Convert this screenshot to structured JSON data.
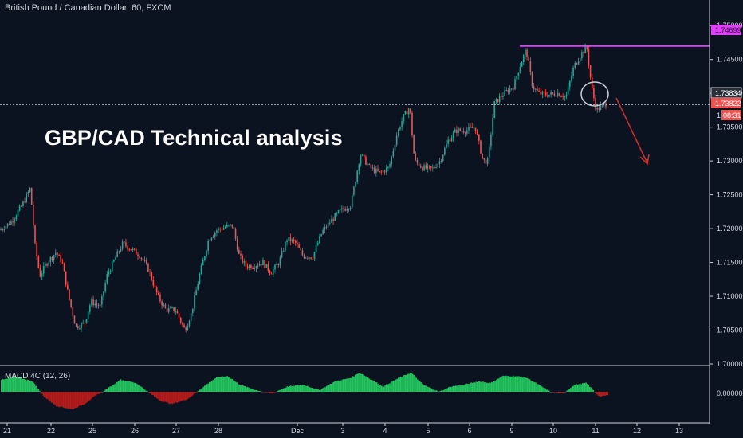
{
  "header": {
    "symbol_title": "British Pound / Canadian Dollar, 60, FXCM"
  },
  "annotation": {
    "headline": "GBP/CAD Technical analysis"
  },
  "macd": {
    "label": "MACD 4C (12, 26)",
    "zero_label": "0.00000"
  },
  "colors": {
    "background": "#0b1220",
    "bull": "#26a69a",
    "bear": "#ef5350",
    "resistance": "#e040fb",
    "arrow": "#d32f2f",
    "macd_pos": "#22c55e",
    "macd_neg": "#b71c1c"
  },
  "price_badges": {
    "resistance": "1.74699",
    "current": "1.73834",
    "bid": "1.73822",
    "timer": "08:31",
    "timer_prefix": "1"
  },
  "chart_data": {
    "type": "candlestick",
    "title": "British Pound / Canadian Dollar, 60, FXCM",
    "ylim": [
      1.7,
      1.7525
    ],
    "y_ticks": [
      "1.75000",
      "1.74500",
      "1.74000",
      "1.73500",
      "1.73000",
      "1.72500",
      "1.72000",
      "1.71500",
      "1.71000",
      "1.70500",
      "1.70000"
    ],
    "x_ticks": [
      "21",
      "22",
      "25",
      "26",
      "27",
      "28",
      "Dec",
      "3",
      "4",
      "5",
      "6",
      "9",
      "10",
      "11",
      "12",
      "13"
    ],
    "resistance_level": 1.74699,
    "current_level": 1.73834,
    "price_path": [
      [
        0,
        1.7198
      ],
      [
        14,
        1.721
      ],
      [
        28,
        1.7235
      ],
      [
        38,
        1.726
      ],
      [
        44,
        1.7175
      ],
      [
        50,
        1.713
      ],
      [
        58,
        1.7148
      ],
      [
        70,
        1.7165
      ],
      [
        78,
        1.715
      ],
      [
        86,
        1.71
      ],
      [
        95,
        1.7055
      ],
      [
        106,
        1.706
      ],
      [
        114,
        1.7092
      ],
      [
        126,
        1.7085
      ],
      [
        134,
        1.713
      ],
      [
        144,
        1.7155
      ],
      [
        154,
        1.7178
      ],
      [
        164,
        1.717
      ],
      [
        176,
        1.716
      ],
      [
        186,
        1.714
      ],
      [
        198,
        1.71
      ],
      [
        208,
        1.708
      ],
      [
        220,
        1.708
      ],
      [
        232,
        1.705
      ],
      [
        240,
        1.7075
      ],
      [
        250,
        1.713
      ],
      [
        262,
        1.7185
      ],
      [
        272,
        1.7198
      ],
      [
        282,
        1.7202
      ],
      [
        292,
        1.7205
      ],
      [
        300,
        1.716
      ],
      [
        308,
        1.7145
      ],
      [
        318,
        1.7145
      ],
      [
        330,
        1.715
      ],
      [
        340,
        1.7135
      ],
      [
        350,
        1.715
      ],
      [
        360,
        1.7185
      ],
      [
        370,
        1.718
      ],
      [
        380,
        1.716
      ],
      [
        392,
        1.7158
      ],
      [
        404,
        1.7195
      ],
      [
        414,
        1.721
      ],
      [
        426,
        1.7225
      ],
      [
        440,
        1.7235
      ],
      [
        452,
        1.731
      ],
      [
        464,
        1.729
      ],
      [
        476,
        1.7282
      ],
      [
        488,
        1.729
      ],
      [
        498,
        1.734
      ],
      [
        506,
        1.7365
      ],
      [
        514,
        1.738
      ],
      [
        520,
        1.73
      ],
      [
        530,
        1.729
      ],
      [
        542,
        1.7288
      ],
      [
        552,
        1.73
      ],
      [
        562,
        1.733
      ],
      [
        572,
        1.7345
      ],
      [
        584,
        1.7345
      ],
      [
        596,
        1.735
      ],
      [
        606,
        1.73
      ],
      [
        612,
        1.73
      ],
      [
        620,
        1.7385
      ],
      [
        632,
        1.74
      ],
      [
        644,
        1.741
      ],
      [
        652,
        1.744
      ],
      [
        660,
        1.7465
      ],
      [
        668,
        1.741
      ],
      [
        676,
        1.74
      ],
      [
        688,
        1.7398
      ],
      [
        700,
        1.74
      ],
      [
        710,
        1.7395
      ],
      [
        720,
        1.744
      ],
      [
        730,
        1.746
      ],
      [
        736,
        1.7468
      ],
      [
        742,
        1.741
      ],
      [
        748,
        1.7375
      ],
      [
        754,
        1.738
      ],
      [
        760,
        1.7385
      ]
    ],
    "macd_path": [
      [
        0,
        0.7
      ],
      [
        20,
        0.85
      ],
      [
        40,
        0.6
      ],
      [
        55,
        -0.3
      ],
      [
        70,
        -0.8
      ],
      [
        90,
        -1.0
      ],
      [
        105,
        -0.7
      ],
      [
        120,
        -0.2
      ],
      [
        135,
        0.2
      ],
      [
        150,
        0.7
      ],
      [
        170,
        0.5
      ],
      [
        185,
        0.0
      ],
      [
        200,
        -0.5
      ],
      [
        215,
        -0.7
      ],
      [
        235,
        -0.4
      ],
      [
        255,
        0.3
      ],
      [
        270,
        0.8
      ],
      [
        285,
        0.9
      ],
      [
        300,
        0.4
      ],
      [
        320,
        0.1
      ],
      [
        340,
        -0.1
      ],
      [
        360,
        0.3
      ],
      [
        380,
        0.4
      ],
      [
        400,
        0.1
      ],
      [
        420,
        0.6
      ],
      [
        440,
        0.8
      ],
      [
        450,
        1.1
      ],
      [
        465,
        0.7
      ],
      [
        480,
        0.3
      ],
      [
        500,
        0.8
      ],
      [
        515,
        1.1
      ],
      [
        530,
        0.4
      ],
      [
        550,
        0.0
      ],
      [
        565,
        0.3
      ],
      [
        580,
        0.4
      ],
      [
        600,
        0.6
      ],
      [
        615,
        0.5
      ],
      [
        630,
        0.9
      ],
      [
        645,
        0.9
      ],
      [
        660,
        0.8
      ],
      [
        675,
        0.4
      ],
      [
        690,
        0.0
      ],
      [
        705,
        -0.1
      ],
      [
        720,
        0.4
      ],
      [
        735,
        0.5
      ],
      [
        745,
        0.0
      ],
      [
        752,
        -0.3
      ],
      [
        760,
        -0.2
      ]
    ]
  }
}
